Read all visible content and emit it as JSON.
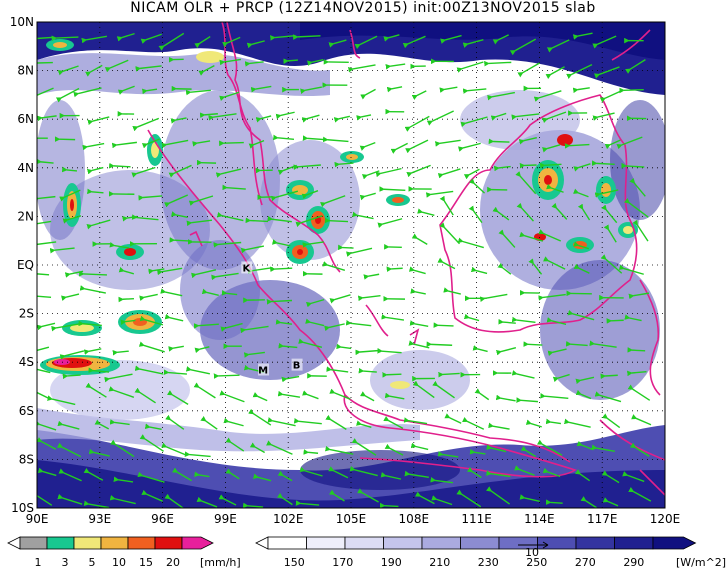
{
  "title": "NICAM OLR + PRCP (12Z14NOV2015) init:00Z13NOV2015 slab",
  "map": {
    "lon_range": [
      90,
      120
    ],
    "lat_range": [
      -10,
      10
    ],
    "lon_ticks": [
      "90E",
      "93E",
      "96E",
      "99E",
      "102E",
      "105E",
      "108E",
      "111E",
      "114E",
      "117E",
      "120E"
    ],
    "lat_ticks": [
      "10N",
      "8N",
      "6N",
      "4N",
      "2N",
      "EQ",
      "2S",
      "4S",
      "6S",
      "8S",
      "10S"
    ],
    "markers": [
      {
        "label": "K",
        "lon": 100.0,
        "lat": -0.1
      },
      {
        "label": "M",
        "lon": 100.8,
        "lat": -4.3
      },
      {
        "label": "B",
        "lon": 102.4,
        "lat": -4.1
      }
    ]
  },
  "precip_colorbar": {
    "unit": "[mm/h]",
    "tick_labels": [
      "1",
      "3",
      "5",
      "10",
      "15",
      "20"
    ],
    "colors": [
      "#a0a0a0",
      "#18c890",
      "#f0e878",
      "#f0b440",
      "#f06020",
      "#e01010",
      "#e8209c"
    ]
  },
  "olr_colorbar": {
    "unit": "[W/m^2]",
    "tick_labels": [
      "150",
      "170",
      "190",
      "210",
      "230",
      "250",
      "270",
      "290"
    ],
    "colors": [
      "#ffffff",
      "#eeeefa",
      "#dcdcf4",
      "#c4c4ec",
      "#aaaae0",
      "#8c8cd2",
      "#6e6ec4",
      "#4e4eb2",
      "#3434a0",
      "#202090",
      "#101080"
    ]
  },
  "wind_vector_reference": "10",
  "colors": {
    "coast": "#e0208c",
    "vector": "#22cc22",
    "frame": "#000000"
  }
}
